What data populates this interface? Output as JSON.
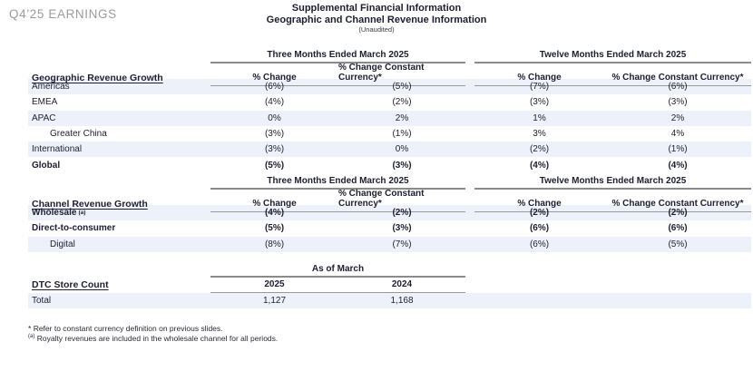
{
  "page": {
    "eyebrow": "Q4’25 EARNINGS",
    "title_line1": "Supplemental Financial Information",
    "title_line2": "Geographic and Channel Revenue Information",
    "title_line3": "(Unaudited)"
  },
  "colors": {
    "text": "#1e1e32",
    "muted_eyebrow": "#9b9b9b",
    "row_shade": "#edf1fa",
    "rule_gray": "#8b8b8b"
  },
  "tables": [
    {
      "section": "Geographic Revenue Growth",
      "groups": [
        "Three Months Ended March 2025",
        "Twelve Months Ended March 2025"
      ],
      "columns": [
        "% Change",
        "% Change Constant Currency*",
        "% Change",
        "% Change Constant Currency*"
      ],
      "rows": [
        {
          "label": "Americas",
          "values": [
            "(6%)",
            "(5%)",
            "(7%)",
            "(6%)"
          ],
          "shaded": true,
          "bold": false,
          "indent": false
        },
        {
          "label": "EMEA",
          "values": [
            "(4%)",
            "(2%)",
            "(3%)",
            "(3%)"
          ],
          "shaded": false,
          "bold": false,
          "indent": false
        },
        {
          "label": "APAC",
          "values": [
            "0%",
            "2%",
            "1%",
            "2%"
          ],
          "shaded": true,
          "bold": false,
          "indent": false
        },
        {
          "label": "Greater China",
          "values": [
            "(3%)",
            "(1%)",
            "3%",
            "4%"
          ],
          "shaded": false,
          "bold": false,
          "indent": true
        },
        {
          "label": "International",
          "values": [
            "(3%)",
            "0%",
            "(2%)",
            "(1%)"
          ],
          "shaded": true,
          "bold": false,
          "indent": false
        },
        {
          "label": "Global",
          "values": [
            "(5%)",
            "(3%)",
            "(4%)",
            "(4%)"
          ],
          "shaded": false,
          "bold": true,
          "indent": false
        }
      ]
    },
    {
      "section": "Channel Revenue Growth",
      "groups": [
        "Three Months Ended March 2025",
        "Twelve Months Ended March 2025"
      ],
      "columns": [
        "% Change",
        "% Change Constant Currency*",
        "% Change",
        "% Change Constant Currency*"
      ],
      "rows": [
        {
          "label": "Wholesale",
          "sup": "(a)",
          "values": [
            "(4%)",
            "(2%)",
            "(2%)",
            "(2%)"
          ],
          "shaded": true,
          "bold": true,
          "indent": false
        },
        {
          "label": "Direct-to-consumer",
          "values": [
            "(5%)",
            "(3%)",
            "(6%)",
            "(6%)"
          ],
          "shaded": false,
          "bold": true,
          "indent": false
        },
        {
          "label": "Digital",
          "values": [
            "(8%)",
            "(7%)",
            "(6%)",
            "(5%)"
          ],
          "shaded": true,
          "bold": false,
          "indent": true
        }
      ]
    }
  ],
  "store_table": {
    "section": "DTC Store Count",
    "group": "As of March",
    "columns": [
      "2025",
      "2024"
    ],
    "rows": [
      {
        "label": "Total",
        "values": [
          "1,127",
          "1,168"
        ],
        "shaded": true,
        "bold": false,
        "indent": false
      }
    ]
  },
  "footnotes": [
    {
      "marker": "*",
      "superscript": false,
      "text": "Refer to constant currency definition on previous slides."
    },
    {
      "marker": "(a)",
      "superscript": true,
      "text": "Royalty revenues are included in the wholesale channel for all periods."
    }
  ]
}
